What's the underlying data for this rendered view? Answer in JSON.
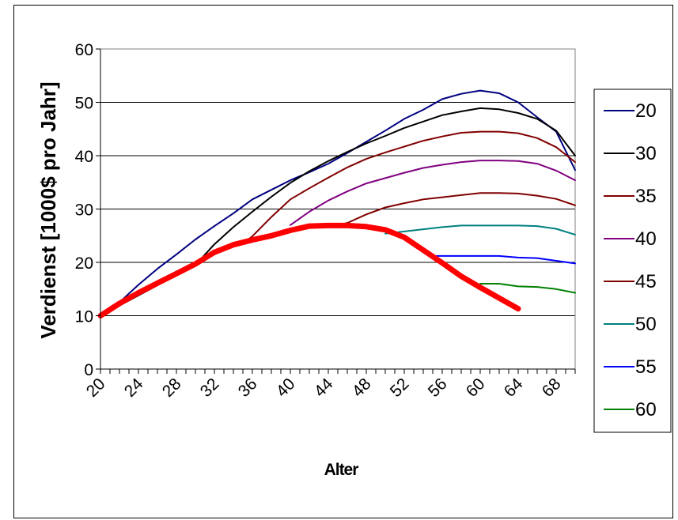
{
  "chart_data": {
    "type": "line",
    "title": "",
    "xlabel": "Alter",
    "ylabel": "Verdienst [1000$ pro Jahr]",
    "xlim": [
      20,
      70
    ],
    "ylim": [
      0,
      60
    ],
    "yticks": [
      0,
      10,
      20,
      30,
      40,
      50,
      60
    ],
    "xtick_labels": [
      "20",
      "24",
      "28",
      "32",
      "36",
      "40",
      "44",
      "48",
      "52",
      "56",
      "60",
      "64",
      "68"
    ],
    "grid": "horizontal",
    "legend": "right",
    "series": [
      {
        "name": "20",
        "color": "#000080",
        "width": 2,
        "x": [
          20,
          22,
          24,
          26,
          28,
          30,
          32,
          34,
          36,
          38,
          40,
          42,
          44,
          46,
          48,
          50,
          52,
          54,
          56,
          58,
          60,
          62,
          64,
          66,
          68,
          70
        ],
        "y": [
          10,
          12.5,
          15.8,
          18.8,
          21.5,
          24.3,
          26.8,
          29.2,
          31.8,
          33.6,
          35.4,
          36.9,
          38.5,
          40.5,
          42.6,
          44.7,
          46.9,
          48.6,
          50.6,
          51.6,
          52.2,
          51.7,
          50,
          47.2,
          44.5,
          37.3
        ]
      },
      {
        "name": "30",
        "color": "#000000",
        "width": 2,
        "x": [
          20,
          30,
          32,
          34,
          36,
          38,
          40,
          42,
          44,
          46,
          48,
          50,
          52,
          54,
          56,
          58,
          60,
          62,
          64,
          66,
          68,
          70
        ],
        "y": [
          10,
          19.5,
          23.4,
          26.6,
          29.5,
          32.3,
          34.9,
          37.1,
          39,
          40.7,
          42.3,
          43.7,
          45.2,
          46.4,
          47.6,
          48.3,
          48.9,
          48.7,
          48,
          46.9,
          44.7,
          40
        ]
      },
      {
        "name": "35",
        "color": "#800000",
        "width": 2,
        "x": [
          35,
          36,
          38,
          40,
          42,
          44,
          46,
          48,
          50,
          52,
          54,
          56,
          58,
          60,
          62,
          64,
          66,
          68,
          70
        ],
        "y": [
          23.5,
          24.9,
          28.5,
          31.8,
          33.9,
          35.9,
          37.8,
          39.4,
          40.6,
          41.7,
          42.8,
          43.6,
          44.3,
          44.5,
          44.5,
          44.2,
          43.3,
          41.6,
          38.8
        ]
      },
      {
        "name": "40",
        "color": "#800080",
        "width": 2,
        "x": [
          40,
          42,
          44,
          46,
          48,
          50,
          52,
          54,
          56,
          58,
          60,
          62,
          64,
          66,
          68,
          70
        ],
        "y": [
          27,
          29.5,
          31.6,
          33.3,
          34.8,
          35.8,
          36.8,
          37.7,
          38.3,
          38.8,
          39.1,
          39.1,
          39,
          38.5,
          37.2,
          35.4
        ]
      },
      {
        "name": "45",
        "color": "#800000",
        "width": 2,
        "x": [
          45,
          46,
          48,
          50,
          52,
          54,
          56,
          58,
          60,
          62,
          64,
          66,
          68,
          70
        ],
        "y": [
          27,
          27.4,
          29,
          30.3,
          31.1,
          31.8,
          32.2,
          32.6,
          33,
          33,
          32.9,
          32.5,
          31.9,
          30.7
        ]
      },
      {
        "name": "50",
        "color": "#008080",
        "width": 2,
        "x": [
          50,
          52,
          54,
          56,
          58,
          60,
          62,
          64,
          66,
          68,
          70
        ],
        "y": [
          25.4,
          25.8,
          26.2,
          26.6,
          26.9,
          26.9,
          26.9,
          26.9,
          26.8,
          26.3,
          25.2
        ]
      },
      {
        "name": "55",
        "color": "#0000ff",
        "width": 2,
        "x": [
          55,
          56,
          58,
          60,
          62,
          64,
          66,
          68,
          70
        ],
        "y": [
          21.2,
          21.2,
          21.2,
          21.2,
          21.2,
          20.9,
          20.8,
          20.3,
          19.8
        ]
      },
      {
        "name": "60",
        "color": "#008000",
        "width": 2,
        "x": [
          60,
          62,
          64,
          66,
          68,
          70
        ],
        "y": [
          16,
          16,
          15.5,
          15.4,
          15,
          14.3
        ]
      },
      {
        "name": "",
        "color": "#ff0000",
        "width": 7,
        "in_legend": false,
        "x": [
          20,
          22,
          24,
          26,
          28,
          30,
          32,
          34,
          36,
          38,
          40,
          42,
          44,
          46,
          48,
          50,
          52,
          54,
          56,
          58,
          60,
          62,
          64
        ],
        "y": [
          10,
          12.3,
          14.3,
          16.1,
          17.9,
          19.7,
          21.9,
          23.3,
          24.2,
          25,
          26,
          26.8,
          26.9,
          26.9,
          26.7,
          26.1,
          24.7,
          22.3,
          19.9,
          17.4,
          15.3,
          13.3,
          11.3
        ]
      }
    ]
  }
}
